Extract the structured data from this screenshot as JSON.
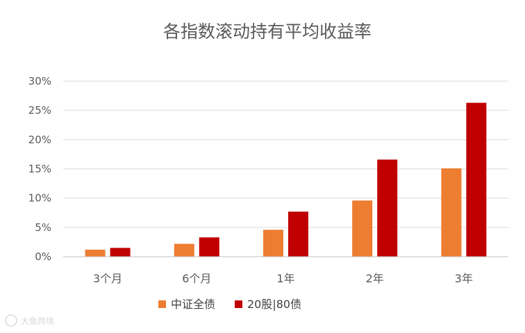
{
  "chart_data": {
    "type": "bar",
    "title": "各指数滚动持有平均收益率",
    "categories": [
      "3个月",
      "6个月",
      "1年",
      "2年",
      "3年"
    ],
    "series": [
      {
        "name": "中证全债",
        "color": "#ED7D31",
        "values": [
          0.012,
          0.022,
          0.046,
          0.096,
          0.151
        ]
      },
      {
        "name": "20股|80债",
        "color": "#C00000",
        "values": [
          0.015,
          0.033,
          0.077,
          0.166,
          0.263
        ]
      }
    ],
    "ylim": [
      0,
      0.3
    ],
    "yticks": [
      "0%",
      "5%",
      "10%",
      "15%",
      "20%",
      "25%",
      "30%"
    ],
    "xlabel": "",
    "ylabel": "",
    "grid": true,
    "legend": "bottom"
  },
  "watermark": {
    "text": "大鱼跨境"
  }
}
